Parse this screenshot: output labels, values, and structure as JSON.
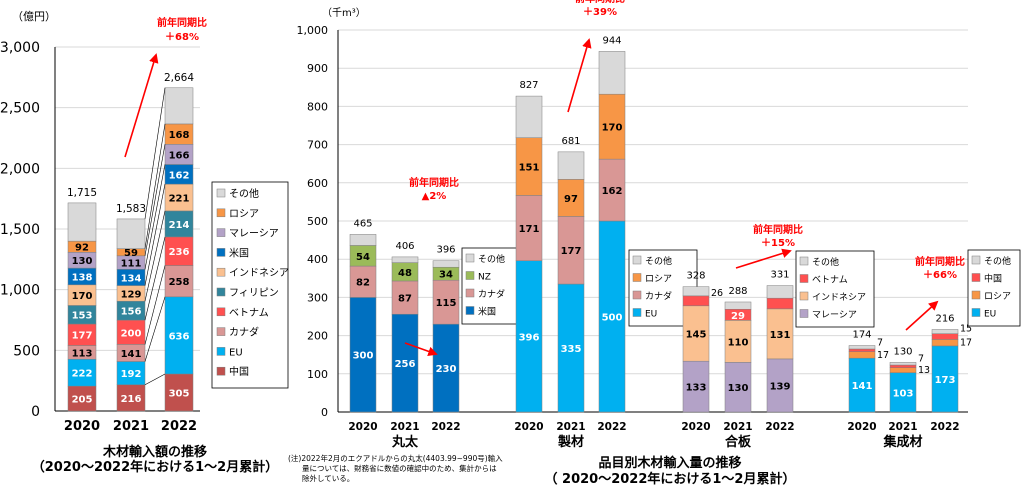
{
  "chart_data": [
    {
      "type": "bar",
      "stacked": true,
      "title": "木材輸入額の推移",
      "subtitle": "（2020～2022年における1～2月累計）",
      "unit_label": "（億円）",
      "ylim": [
        0,
        3000
      ],
      "yticks": [
        "0",
        "500",
        "1,000",
        "1,500",
        "2,000",
        "2,500",
        "3,000"
      ],
      "categories": [
        "2020",
        "2021",
        "2022"
      ],
      "totals": [
        "1,715",
        "1,583",
        "2,664"
      ],
      "series": [
        {
          "name": "中国",
          "color": "#c0504d",
          "values": [
            205,
            216,
            305
          ]
        },
        {
          "name": "EU",
          "color": "#00b0f0",
          "values": [
            222,
            192,
            636
          ]
        },
        {
          "name": "カナダ",
          "color": "#d99795",
          "values": [
            113,
            141,
            258
          ]
        },
        {
          "name": "ベトナム",
          "color": "#ff5050",
          "values": [
            177,
            200,
            236
          ]
        },
        {
          "name": "フィリピン",
          "color": "#31859c",
          "values": [
            153,
            156,
            214
          ]
        },
        {
          "name": "インドネシア",
          "color": "#fac090",
          "values": [
            170,
            129,
            221
          ]
        },
        {
          "name": "米国",
          "color": "#0070c0",
          "values": [
            138,
            134,
            162
          ]
        },
        {
          "name": "マレーシア",
          "color": "#b3a2c7",
          "values": [
            130,
            111,
            166
          ]
        },
        {
          "name": "ロシア",
          "color": "#f79646",
          "values": [
            92,
            59,
            168
          ]
        },
        {
          "name": "その他",
          "color": "#d9d9d9",
          "values": [
            315,
            245,
            298
          ]
        }
      ],
      "annotation": {
        "line1": "前年同期比",
        "line2": "＋68%"
      },
      "legend": [
        "その他",
        "ロシア",
        "マレーシア",
        "米国",
        "インドネシア",
        "フィリピン",
        "ベトナム",
        "カナダ",
        "EU",
        "中国"
      ],
      "legend_position": "right"
    },
    {
      "type": "bar",
      "stacked": true,
      "title": "品目別木材輸入量の推移",
      "subtitle": "（ 2020～2022年における1～2月累計）",
      "unit_label": "（千m³）",
      "ylim": [
        0,
        1000
      ],
      "yticks": [
        "0",
        "100",
        "200",
        "300",
        "400",
        "500",
        "600",
        "700",
        "800",
        "900",
        "1,000"
      ],
      "groups": [
        {
          "name": "丸太",
          "categories": [
            "2020",
            "2021",
            "2022"
          ],
          "totals": [
            "465",
            "406",
            "396"
          ],
          "series": [
            {
              "name": "米国",
              "color": "#0070c0",
              "values": [
                300,
                256,
                230
              ]
            },
            {
              "name": "カナダ",
              "color": "#d99795",
              "values": [
                82,
                87,
                115
              ]
            },
            {
              "name": "NZ",
              "color": "#9bbb59",
              "values": [
                54,
                48,
                34
              ]
            },
            {
              "name": "その他",
              "color": "#d9d9d9",
              "values": [
                29,
                15,
                17
              ]
            }
          ],
          "annotation": {
            "line1": "前年同期比",
            "line2": "▲2%"
          },
          "legend": [
            "その他",
            "NZ",
            "カナダ",
            "米国"
          ]
        },
        {
          "name": "製材",
          "categories": [
            "2020",
            "2021",
            "2022"
          ],
          "totals": [
            "827",
            "681",
            "944"
          ],
          "series": [
            {
              "name": "EU",
              "color": "#00b0f0",
              "values": [
                396,
                335,
                500
              ]
            },
            {
              "name": "カナダ",
              "color": "#d99795",
              "values": [
                171,
                177,
                162
              ]
            },
            {
              "name": "ロシア",
              "color": "#f79646",
              "values": [
                151,
                97,
                170
              ]
            },
            {
              "name": "その他",
              "color": "#d9d9d9",
              "values": [
                109,
                72,
                112
              ]
            }
          ],
          "annotation": {
            "line1": "前年同期比",
            "line2": "＋39%"
          },
          "legend": [
            "その他",
            "ロシア",
            "カナダ",
            "EU"
          ]
        },
        {
          "name": "合板",
          "categories": [
            "2020",
            "2021",
            "2022"
          ],
          "totals": [
            "328",
            "288",
            "331"
          ],
          "series": [
            {
              "name": "マレーシア",
              "color": "#b3a2c7",
              "values": [
                133,
                130,
                139
              ]
            },
            {
              "name": "インドネシア",
              "color": "#fac090",
              "values": [
                145,
                110,
                131
              ]
            },
            {
              "name": "ベトナム",
              "color": "#ff5050",
              "values": [
                26,
                29,
                28
              ]
            },
            {
              "name": "その他",
              "color": "#d9d9d9",
              "values": [
                24,
                19,
                33
              ]
            }
          ],
          "annotation": {
            "line1": "前年同期比",
            "line2": "＋15%"
          },
          "legend": [
            "その他",
            "ベトナム",
            "インドネシア",
            "マレーシア"
          ]
        },
        {
          "name": "集成材",
          "categories": [
            "2020",
            "2021",
            "2022"
          ],
          "totals": [
            "174",
            "130",
            "216"
          ],
          "series": [
            {
              "name": "EU",
              "color": "#00b0f0",
              "values": [
                141,
                103,
                173
              ]
            },
            {
              "name": "ロシア",
              "color": "#f79646",
              "values": [
                17,
                13,
                17
              ]
            },
            {
              "name": "中国",
              "color": "#ff5050",
              "values": [
                7,
                7,
                15
              ]
            },
            {
              "name": "その他",
              "color": "#d9d9d9",
              "values": [
                9,
                7,
                11
              ]
            }
          ],
          "annotation": {
            "line1": "前年同期比",
            "line2": "＋66%"
          },
          "legend": [
            "その他",
            "中国",
            "ロシア",
            "EU"
          ]
        }
      ],
      "note": [
        "(注)2022年2月のエクアドルからの丸太(4403.99~990号)輸入",
        "量については、財務省に数値の確認中のため、集計からは",
        "除外している。"
      ]
    }
  ]
}
